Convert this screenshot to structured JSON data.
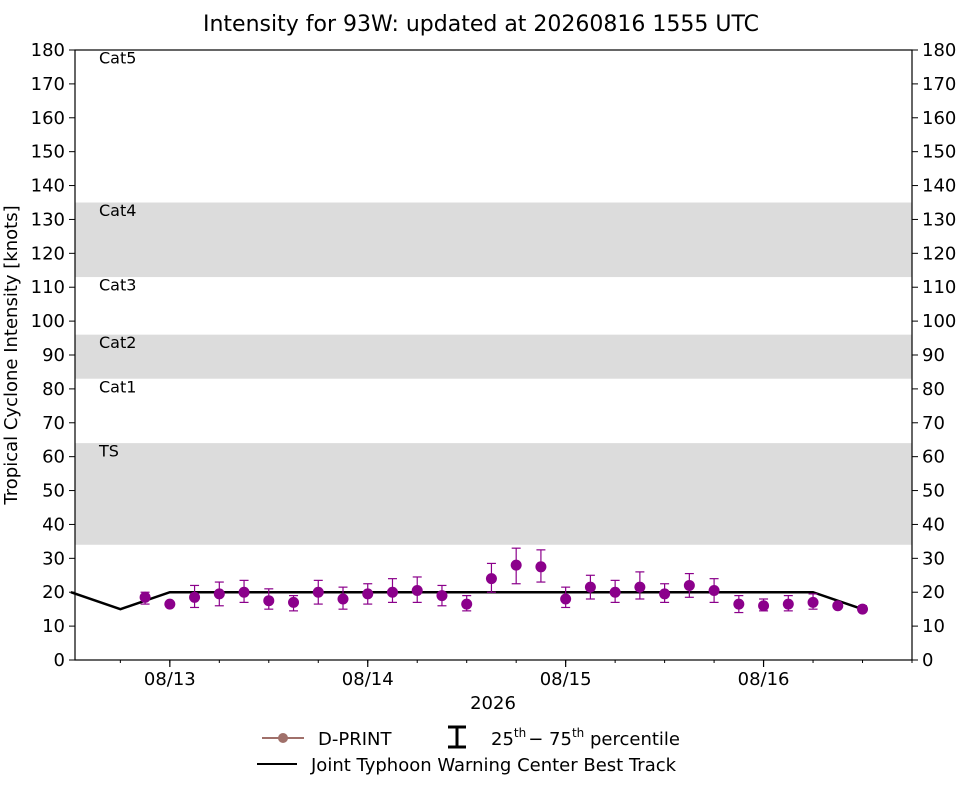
{
  "chart_data": {
    "type": "scatter",
    "title": "Intensity for 93W: updated at 20260816 1555 UTC",
    "xlabel": "2026",
    "ylabel": "Tropical Cyclone Intensity [knots]",
    "ylim": [
      0,
      180
    ],
    "yticks": [
      0,
      10,
      20,
      30,
      40,
      50,
      60,
      70,
      80,
      90,
      100,
      110,
      120,
      130,
      140,
      150,
      160,
      170,
      180
    ],
    "xlim": [
      "2026-08-12 12:30",
      "2026-08-16 18:00"
    ],
    "xticks": [
      "08/13",
      "08/14",
      "08/15",
      "08/16"
    ],
    "xtick_dates": [
      "2026-08-13 00:00",
      "2026-08-14 00:00",
      "2026-08-15 00:00",
      "2026-08-16 00:00"
    ],
    "grid": false,
    "legend_position": "bottom-center",
    "category_bands": [
      {
        "label": "TS",
        "range": [
          34,
          64
        ],
        "shaded": true
      },
      {
        "label": "Cat1",
        "range": [
          64,
          83
        ],
        "shaded": false
      },
      {
        "label": "Cat2",
        "range": [
          83,
          96
        ],
        "shaded": true
      },
      {
        "label": "Cat3",
        "range": [
          96,
          113
        ],
        "shaded": false
      },
      {
        "label": "Cat4",
        "range": [
          113,
          135
        ],
        "shaded": true
      },
      {
        "label": "Cat5",
        "range": [
          135,
          180
        ],
        "shaded": false
      }
    ],
    "series": [
      {
        "name": "D-PRINT",
        "kind": "points_with_errorbars",
        "color": "#8b008b",
        "legend_marker_color": "#a0706a",
        "points": [
          {
            "x": "2026-08-12 21:00",
            "y": 18.5,
            "p25": 16.5,
            "p75": 20.0
          },
          {
            "x": "2026-08-13 00:00",
            "y": 16.5,
            "p25": null,
            "p75": null
          },
          {
            "x": "2026-08-13 03:00",
            "y": 18.5,
            "p25": 15.5,
            "p75": 22.0
          },
          {
            "x": "2026-08-13 06:00",
            "y": 19.5,
            "p25": 16.0,
            "p75": 23.0
          },
          {
            "x": "2026-08-13 09:00",
            "y": 20.0,
            "p25": 17.0,
            "p75": 23.5
          },
          {
            "x": "2026-08-13 12:00",
            "y": 17.5,
            "p25": 15.0,
            "p75": 21.0
          },
          {
            "x": "2026-08-13 15:00",
            "y": 17.0,
            "p25": 14.5,
            "p75": 19.0
          },
          {
            "x": "2026-08-13 18:00",
            "y": 20.0,
            "p25": 16.5,
            "p75": 23.5
          },
          {
            "x": "2026-08-13 21:00",
            "y": 18.0,
            "p25": 15.0,
            "p75": 21.5
          },
          {
            "x": "2026-08-14 00:00",
            "y": 19.5,
            "p25": 16.5,
            "p75": 22.5
          },
          {
            "x": "2026-08-14 03:00",
            "y": 20.0,
            "p25": 17.0,
            "p75": 24.0
          },
          {
            "x": "2026-08-14 06:00",
            "y": 20.5,
            "p25": 17.0,
            "p75": 24.5
          },
          {
            "x": "2026-08-14 09:00",
            "y": 19.0,
            "p25": 16.0,
            "p75": 22.0
          },
          {
            "x": "2026-08-14 12:00",
            "y": 16.5,
            "p25": 14.5,
            "p75": 19.0
          },
          {
            "x": "2026-08-14 15:00",
            "y": 24.0,
            "p25": 20.0,
            "p75": 28.5
          },
          {
            "x": "2026-08-14 18:00",
            "y": 28.0,
            "p25": 22.5,
            "p75": 33.0
          },
          {
            "x": "2026-08-14 21:00",
            "y": 27.5,
            "p25": 23.0,
            "p75": 32.5
          },
          {
            "x": "2026-08-15 00:00",
            "y": 18.0,
            "p25": 15.5,
            "p75": 21.5
          },
          {
            "x": "2026-08-15 03:00",
            "y": 21.5,
            "p25": 18.0,
            "p75": 25.0
          },
          {
            "x": "2026-08-15 06:00",
            "y": 20.0,
            "p25": 17.0,
            "p75": 23.5
          },
          {
            "x": "2026-08-15 09:00",
            "y": 21.5,
            "p25": 18.0,
            "p75": 26.0
          },
          {
            "x": "2026-08-15 12:00",
            "y": 19.5,
            "p25": 17.0,
            "p75": 22.5
          },
          {
            "x": "2026-08-15 15:00",
            "y": 22.0,
            "p25": 18.5,
            "p75": 25.5
          },
          {
            "x": "2026-08-15 18:00",
            "y": 20.5,
            "p25": 17.0,
            "p75": 24.0
          },
          {
            "x": "2026-08-15 21:00",
            "y": 16.5,
            "p25": 14.0,
            "p75": 19.0
          },
          {
            "x": "2026-08-16 00:00",
            "y": 16.0,
            "p25": 14.5,
            "p75": 18.0
          },
          {
            "x": "2026-08-16 03:00",
            "y": 16.5,
            "p25": 14.5,
            "p75": 19.0
          },
          {
            "x": "2026-08-16 06:00",
            "y": 17.0,
            "p25": 15.0,
            "p75": 19.5
          },
          {
            "x": "2026-08-16 09:00",
            "y": 16.0,
            "p25": null,
            "p75": null
          },
          {
            "x": "2026-08-16 12:00",
            "y": 15.0,
            "p25": 14.5,
            "p75": 16.0
          }
        ]
      },
      {
        "name": "Joint Typhoon Warning Center Best Track",
        "kind": "line",
        "color": "#000000",
        "points": [
          {
            "x": "2026-08-12 12:00",
            "y": 20
          },
          {
            "x": "2026-08-12 18:00",
            "y": 15
          },
          {
            "x": "2026-08-13 00:00",
            "y": 20
          },
          {
            "x": "2026-08-16 06:00",
            "y": 20
          },
          {
            "x": "2026-08-16 12:00",
            "y": 15
          }
        ]
      }
    ],
    "legend": {
      "dprint_label": "D-PRINT",
      "percentile_base": "25",
      "percentile_sup1": "th",
      "percentile_dash": "− 75",
      "percentile_sup2": "th",
      "percentile_suffix": " percentile",
      "best_track_label": "Joint Typhoon Warning Center Best Track"
    }
  }
}
